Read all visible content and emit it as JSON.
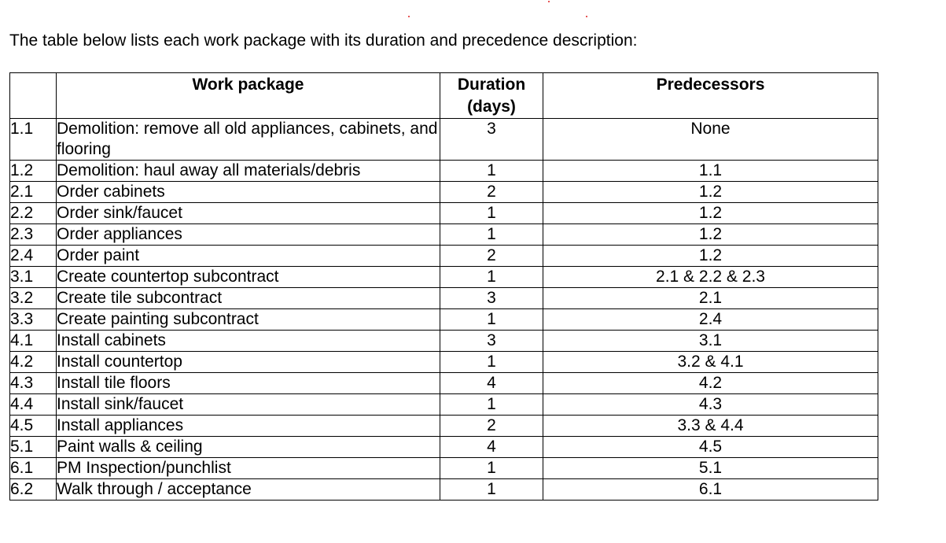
{
  "intro_text": "The table below lists each work package with its duration and precedence description:",
  "table": {
    "headers": {
      "id": "",
      "work_package": "Work package",
      "duration": "Duration (days)",
      "predecessors": "Predecessors"
    },
    "rows": [
      {
        "id": "1.1",
        "name": "Demolition: remove all old appliances, cabinets, and flooring",
        "duration": "3",
        "predecessors": "None"
      },
      {
        "id": "1.2",
        "name": "Demolition: haul away all materials/debris",
        "duration": "1",
        "predecessors": "1.1"
      },
      {
        "id": "2.1",
        "name": "Order cabinets",
        "duration": "2",
        "predecessors": "1.2"
      },
      {
        "id": "2.2",
        "name": "Order sink/faucet",
        "duration": "1",
        "predecessors": "1.2"
      },
      {
        "id": "2.3",
        "name": "Order appliances",
        "duration": "1",
        "predecessors": "1.2"
      },
      {
        "id": "2.4",
        "name": "Order paint",
        "duration": "2",
        "predecessors": "1.2"
      },
      {
        "id": "3.1",
        "name": "Create countertop subcontract",
        "duration": "1",
        "predecessors": "2.1 & 2.2 & 2.3"
      },
      {
        "id": "3.2",
        "name": "Create tile subcontract",
        "duration": "3",
        "predecessors": "2.1"
      },
      {
        "id": "3.3",
        "name": "Create painting subcontract",
        "duration": "1",
        "predecessors": "2.4"
      },
      {
        "id": "4.1",
        "name": "Install cabinets",
        "duration": "3",
        "predecessors": "3.1"
      },
      {
        "id": "4.2",
        "name": "Install countertop",
        "duration": "1",
        "predecessors": "3.2 & 4.1"
      },
      {
        "id": "4.3",
        "name": "Install tile floors",
        "duration": "4",
        "predecessors": "4.2"
      },
      {
        "id": "4.4",
        "name": "Install sink/faucet",
        "duration": "1",
        "predecessors": "4.3"
      },
      {
        "id": "4.5",
        "name": "Install appliances",
        "duration": "2",
        "predecessors": "3.3 & 4.4"
      },
      {
        "id": "5.1",
        "name": "Paint walls & ceiling",
        "duration": "4",
        "predecessors": "4.5"
      },
      {
        "id": "6.1",
        "name": "PM Inspection/punchlist",
        "duration": "1",
        "predecessors": "5.1"
      },
      {
        "id": "6.2",
        "name": "Walk through / acceptance",
        "duration": "1",
        "predecessors": "6.1"
      }
    ]
  }
}
